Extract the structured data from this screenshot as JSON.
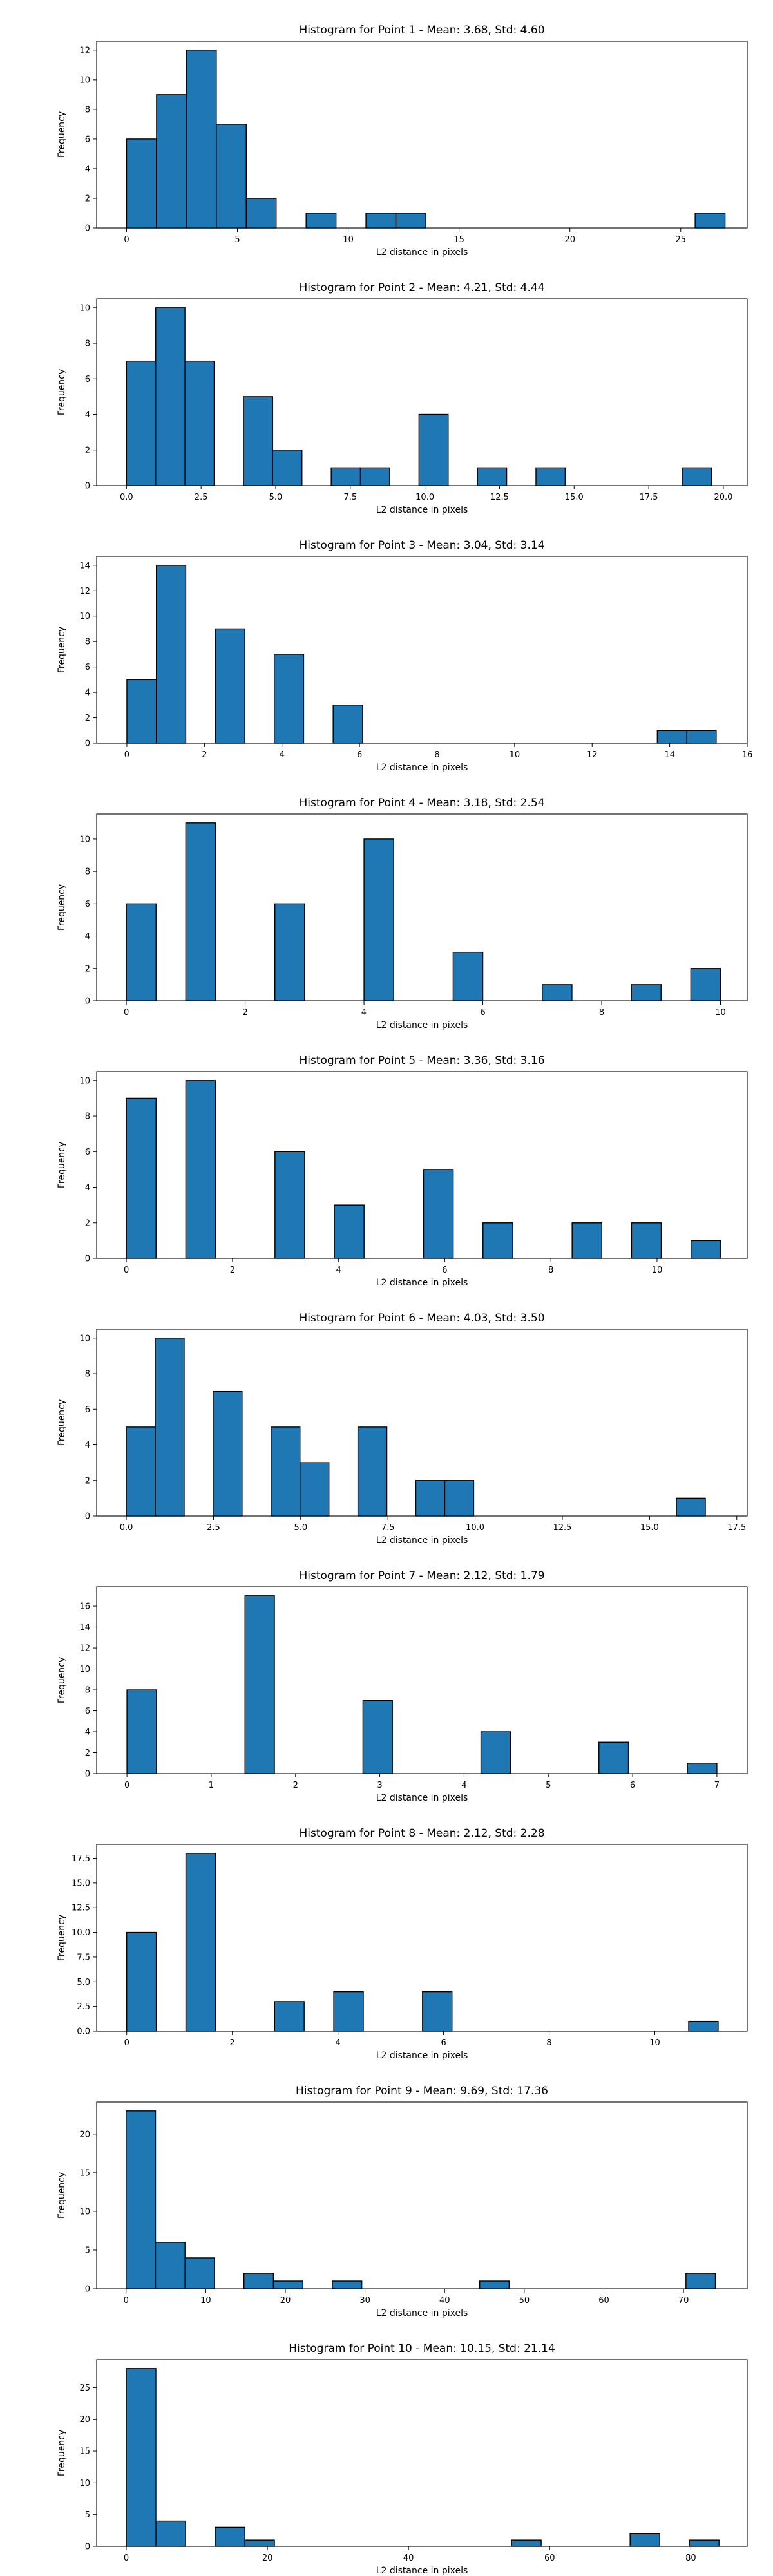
{
  "chart_data": [
    {
      "type": "bar",
      "title": "Histogram for Point 1 - Mean: 3.68, Std: 4.60",
      "xlabel": "L2 distance in pixels",
      "ylabel": "Frequency",
      "xlim": [
        -1.35,
        28.0
      ],
      "ylim": [
        0,
        12.6
      ],
      "xticks": [
        0,
        5,
        10,
        15,
        20,
        25
      ],
      "xtick_labels": [
        "0",
        "5",
        "10",
        "15",
        "20",
        "25"
      ],
      "yticks": [
        0,
        2,
        4,
        6,
        8,
        10,
        12
      ],
      "ytick_labels": [
        "0",
        "2",
        "4",
        "6",
        "8",
        "10",
        "12"
      ],
      "bins": [
        {
          "x0": 0.0,
          "x1": 1.35,
          "count": 6
        },
        {
          "x0": 1.35,
          "x1": 2.7,
          "count": 9
        },
        {
          "x0": 2.7,
          "x1": 4.05,
          "count": 12
        },
        {
          "x0": 4.05,
          "x1": 5.4,
          "count": 7
        },
        {
          "x0": 5.4,
          "x1": 6.75,
          "count": 2
        },
        {
          "x0": 8.1,
          "x1": 9.45,
          "count": 1
        },
        {
          "x0": 10.8,
          "x1": 12.15,
          "count": 1
        },
        {
          "x0": 12.15,
          "x1": 13.5,
          "count": 1
        },
        {
          "x0": 25.65,
          "x1": 27.0,
          "count": 1
        }
      ]
    },
    {
      "type": "bar",
      "title": "Histogram for Point 2 - Mean: 4.21, Std: 4.44",
      "xlabel": "L2 distance in pixels",
      "ylabel": "Frequency",
      "xlim": [
        -1.0,
        20.8
      ],
      "ylim": [
        0,
        10.5
      ],
      "xticks": [
        0,
        2.5,
        5,
        7.5,
        10,
        12.5,
        15,
        17.5,
        20
      ],
      "xtick_labels": [
        "0.0",
        "2.5",
        "5.0",
        "7.5",
        "10.0",
        "12.5",
        "15.0",
        "17.5",
        "20.0"
      ],
      "yticks": [
        0,
        2,
        4,
        6,
        8,
        10
      ],
      "ytick_labels": [
        "0",
        "2",
        "4",
        "6",
        "8",
        "10"
      ],
      "bins": [
        {
          "x0": 0.0,
          "x1": 0.98,
          "count": 7
        },
        {
          "x0": 0.98,
          "x1": 1.96,
          "count": 10
        },
        {
          "x0": 1.96,
          "x1": 2.94,
          "count": 7
        },
        {
          "x0": 3.92,
          "x1": 4.9,
          "count": 5
        },
        {
          "x0": 4.9,
          "x1": 5.88,
          "count": 2
        },
        {
          "x0": 6.86,
          "x1": 7.84,
          "count": 1
        },
        {
          "x0": 7.84,
          "x1": 8.82,
          "count": 1
        },
        {
          "x0": 9.8,
          "x1": 10.78,
          "count": 4
        },
        {
          "x0": 11.76,
          "x1": 12.74,
          "count": 1
        },
        {
          "x0": 13.72,
          "x1": 14.7,
          "count": 1
        },
        {
          "x0": 18.62,
          "x1": 19.6,
          "count": 1
        }
      ]
    },
    {
      "type": "bar",
      "title": "Histogram for Point 3 - Mean: 3.04, Std: 3.14",
      "xlabel": "L2 distance in pixels",
      "ylabel": "Frequency",
      "xlim": [
        -0.78,
        16.0
      ],
      "ylim": [
        0,
        14.7
      ],
      "xticks": [
        0,
        2,
        4,
        6,
        8,
        10,
        12,
        14,
        16
      ],
      "xtick_labels": [
        "0",
        "2",
        "4",
        "6",
        "8",
        "10",
        "12",
        "14",
        "16"
      ],
      "yticks": [
        0,
        2,
        4,
        6,
        8,
        10,
        12,
        14
      ],
      "ytick_labels": [
        "0",
        "2",
        "4",
        "6",
        "8",
        "10",
        "12",
        "14"
      ],
      "bins": [
        {
          "x0": 0.0,
          "x1": 0.76,
          "count": 5
        },
        {
          "x0": 0.76,
          "x1": 1.52,
          "count": 14
        },
        {
          "x0": 2.28,
          "x1": 3.04,
          "count": 9
        },
        {
          "x0": 3.8,
          "x1": 4.56,
          "count": 7
        },
        {
          "x0": 5.32,
          "x1": 6.08,
          "count": 3
        },
        {
          "x0": 13.68,
          "x1": 14.44,
          "count": 1
        },
        {
          "x0": 14.44,
          "x1": 15.2,
          "count": 1
        }
      ]
    },
    {
      "type": "bar",
      "title": "Histogram for Point 4 - Mean: 3.18, Std: 2.54",
      "xlabel": "L2 distance in pixels",
      "ylabel": "Frequency",
      "xlim": [
        -0.5,
        10.45
      ],
      "ylim": [
        0,
        11.55
      ],
      "xticks": [
        0,
        2,
        4,
        6,
        8,
        10
      ],
      "xtick_labels": [
        "0",
        "2",
        "4",
        "6",
        "8",
        "10"
      ],
      "yticks": [
        0,
        2,
        4,
        6,
        8,
        10
      ],
      "ytick_labels": [
        "0",
        "2",
        "4",
        "6",
        "8",
        "10"
      ],
      "bins": [
        {
          "x0": 0.0,
          "x1": 0.5,
          "count": 6
        },
        {
          "x0": 1.0,
          "x1": 1.5,
          "count": 11
        },
        {
          "x0": 2.5,
          "x1": 3.0,
          "count": 6
        },
        {
          "x0": 4.0,
          "x1": 4.5,
          "count": 10
        },
        {
          "x0": 5.5,
          "x1": 6.0,
          "count": 3
        },
        {
          "x0": 7.0,
          "x1": 7.5,
          "count": 1
        },
        {
          "x0": 8.5,
          "x1": 9.0,
          "count": 1
        },
        {
          "x0": 9.5,
          "x1": 10.0,
          "count": 2
        }
      ]
    },
    {
      "type": "bar",
      "title": "Histogram for Point 5 - Mean: 3.36, Std: 3.16",
      "xlabel": "L2 distance in pixels",
      "ylabel": "Frequency",
      "xlim": [
        -0.56,
        11.7
      ],
      "ylim": [
        0,
        10.5
      ],
      "xticks": [
        0,
        2,
        4,
        6,
        8,
        10
      ],
      "xtick_labels": [
        "0",
        "2",
        "4",
        "6",
        "8",
        "10"
      ],
      "yticks": [
        0,
        2,
        4,
        6,
        8,
        10
      ],
      "ytick_labels": [
        "0",
        "2",
        "4",
        "6",
        "8",
        "10"
      ],
      "bins": [
        {
          "x0": 0.0,
          "x1": 0.56,
          "count": 9
        },
        {
          "x0": 1.12,
          "x1": 1.68,
          "count": 10
        },
        {
          "x0": 2.8,
          "x1": 3.36,
          "count": 6
        },
        {
          "x0": 3.92,
          "x1": 4.48,
          "count": 3
        },
        {
          "x0": 5.6,
          "x1": 6.16,
          "count": 5
        },
        {
          "x0": 6.72,
          "x1": 7.28,
          "count": 2
        },
        {
          "x0": 8.4,
          "x1": 8.96,
          "count": 2
        },
        {
          "x0": 9.52,
          "x1": 10.08,
          "count": 2
        },
        {
          "x0": 10.64,
          "x1": 11.2,
          "count": 1
        }
      ]
    },
    {
      "type": "bar",
      "title": "Histogram for Point 6 - Mean: 4.03, Std: 3.50",
      "xlabel": "L2 distance in pixels",
      "ylabel": "Frequency",
      "xlim": [
        -0.85,
        17.8
      ],
      "ylim": [
        0,
        10.5
      ],
      "xticks": [
        0,
        2.5,
        5,
        7.5,
        10,
        12.5,
        15,
        17.5
      ],
      "xtick_labels": [
        "0.0",
        "2.5",
        "5.0",
        "7.5",
        "10.0",
        "12.5",
        "15.0",
        "17.5"
      ],
      "yticks": [
        0,
        2,
        4,
        6,
        8,
        10
      ],
      "ytick_labels": [
        "0",
        "2",
        "4",
        "6",
        "8",
        "10"
      ],
      "bins": [
        {
          "x0": 0.0,
          "x1": 0.83,
          "count": 5
        },
        {
          "x0": 0.83,
          "x1": 1.66,
          "count": 10
        },
        {
          "x0": 2.49,
          "x1": 3.32,
          "count": 7
        },
        {
          "x0": 4.15,
          "x1": 4.98,
          "count": 5
        },
        {
          "x0": 4.98,
          "x1": 5.81,
          "count": 3
        },
        {
          "x0": 6.64,
          "x1": 7.47,
          "count": 5
        },
        {
          "x0": 8.3,
          "x1": 9.13,
          "count": 2
        },
        {
          "x0": 9.13,
          "x1": 9.96,
          "count": 2
        },
        {
          "x0": 15.77,
          "x1": 16.6,
          "count": 1
        }
      ]
    },
    {
      "type": "bar",
      "title": "Histogram for Point 7 - Mean: 2.12, Std: 1.79",
      "xlabel": "L2 distance in pixels",
      "ylabel": "Frequency",
      "xlim": [
        -0.36,
        7.36
      ],
      "ylim": [
        0,
        17.85
      ],
      "xticks": [
        0,
        1,
        2,
        3,
        4,
        5,
        6,
        7
      ],
      "xtick_labels": [
        "0",
        "1",
        "2",
        "3",
        "4",
        "5",
        "6",
        "7"
      ],
      "yticks": [
        0,
        2,
        4,
        6,
        8,
        10,
        12,
        14,
        16
      ],
      "ytick_labels": [
        "0",
        "2",
        "4",
        "6",
        "8",
        "10",
        "12",
        "14",
        "16"
      ],
      "bins": [
        {
          "x0": 0.0,
          "x1": 0.35,
          "count": 8
        },
        {
          "x0": 1.4,
          "x1": 1.75,
          "count": 17
        },
        {
          "x0": 2.8,
          "x1": 3.15,
          "count": 7
        },
        {
          "x0": 4.2,
          "x1": 4.55,
          "count": 4
        },
        {
          "x0": 5.6,
          "x1": 5.95,
          "count": 3
        },
        {
          "x0": 6.65,
          "x1": 7.0,
          "count": 1
        }
      ]
    },
    {
      "type": "bar",
      "title": "Histogram for Point 8 - Mean: 2.12, Std: 2.28",
      "xlabel": "L2 distance in pixels",
      "ylabel": "Frequency",
      "xlim": [
        -0.57,
        11.75
      ],
      "ylim": [
        0,
        18.9
      ],
      "xticks": [
        0,
        2,
        4,
        6,
        8,
        10
      ],
      "xtick_labels": [
        "0",
        "2",
        "4",
        "6",
        "8",
        "10"
      ],
      "yticks": [
        0,
        2.5,
        5,
        7.5,
        10,
        12.5,
        15,
        17.5
      ],
      "ytick_labels": [
        "0.0",
        "2.5",
        "5.0",
        "7.5",
        "10.0",
        "12.5",
        "15.0",
        "17.5"
      ],
      "bins": [
        {
          "x0": 0.0,
          "x1": 0.56,
          "count": 10
        },
        {
          "x0": 1.12,
          "x1": 1.68,
          "count": 18
        },
        {
          "x0": 2.8,
          "x1": 3.36,
          "count": 3
        },
        {
          "x0": 3.92,
          "x1": 4.48,
          "count": 4
        },
        {
          "x0": 5.6,
          "x1": 6.16,
          "count": 4
        },
        {
          "x0": 10.64,
          "x1": 11.2,
          "count": 1
        }
      ]
    },
    {
      "type": "bar",
      "title": "Histogram for Point 9 - Mean: 9.69, Std: 17.36",
      "xlabel": "L2 distance in pixels",
      "ylabel": "Frequency",
      "xlim": [
        -3.7,
        78.0
      ],
      "ylim": [
        0,
        24.15
      ],
      "xticks": [
        0,
        10,
        20,
        30,
        40,
        50,
        60,
        70
      ],
      "xtick_labels": [
        "0",
        "10",
        "20",
        "30",
        "40",
        "50",
        "60",
        "70"
      ],
      "yticks": [
        0,
        5,
        10,
        15,
        20
      ],
      "ytick_labels": [
        "0",
        "5",
        "10",
        "15",
        "20"
      ],
      "bins": [
        {
          "x0": 0.0,
          "x1": 3.7,
          "count": 23
        },
        {
          "x0": 3.7,
          "x1": 7.4,
          "count": 6
        },
        {
          "x0": 7.4,
          "x1": 11.1,
          "count": 4
        },
        {
          "x0": 14.8,
          "x1": 18.5,
          "count": 2
        },
        {
          "x0": 18.5,
          "x1": 22.2,
          "count": 1
        },
        {
          "x0": 25.9,
          "x1": 29.6,
          "count": 1
        },
        {
          "x0": 44.4,
          "x1": 48.1,
          "count": 1
        },
        {
          "x0": 70.3,
          "x1": 74.0,
          "count": 2
        }
      ]
    },
    {
      "type": "bar",
      "title": "Histogram for Point 10 - Mean: 10.15, Std: 21.14",
      "xlabel": "L2 distance in pixels",
      "ylabel": "Frequency",
      "xlim": [
        -4.2,
        88.0
      ],
      "ylim": [
        0,
        29.4
      ],
      "xticks": [
        0,
        20,
        40,
        60,
        80
      ],
      "xtick_labels": [
        "0",
        "20",
        "40",
        "60",
        "80"
      ],
      "yticks": [
        0,
        5,
        10,
        15,
        20,
        25
      ],
      "ytick_labels": [
        "0",
        "5",
        "10",
        "15",
        "20",
        "25"
      ],
      "bins": [
        {
          "x0": 0.0,
          "x1": 4.2,
          "count": 28
        },
        {
          "x0": 4.2,
          "x1": 8.4,
          "count": 4
        },
        {
          "x0": 12.6,
          "x1": 16.8,
          "count": 3
        },
        {
          "x0": 16.8,
          "x1": 21.0,
          "count": 1
        },
        {
          "x0": 54.6,
          "x1": 58.8,
          "count": 1
        },
        {
          "x0": 71.4,
          "x1": 75.6,
          "count": 2
        },
        {
          "x0": 79.8,
          "x1": 84.0,
          "count": 1
        }
      ]
    }
  ]
}
